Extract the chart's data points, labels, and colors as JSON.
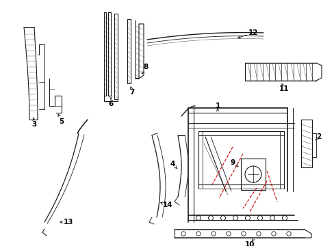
{
  "background_color": "#ffffff",
  "line_color": "#1a1a1a",
  "red_dash_color": "#cc0000",
  "label_color": "#000000",
  "fig_width": 4.89,
  "fig_height": 3.6,
  "dpi": 100
}
